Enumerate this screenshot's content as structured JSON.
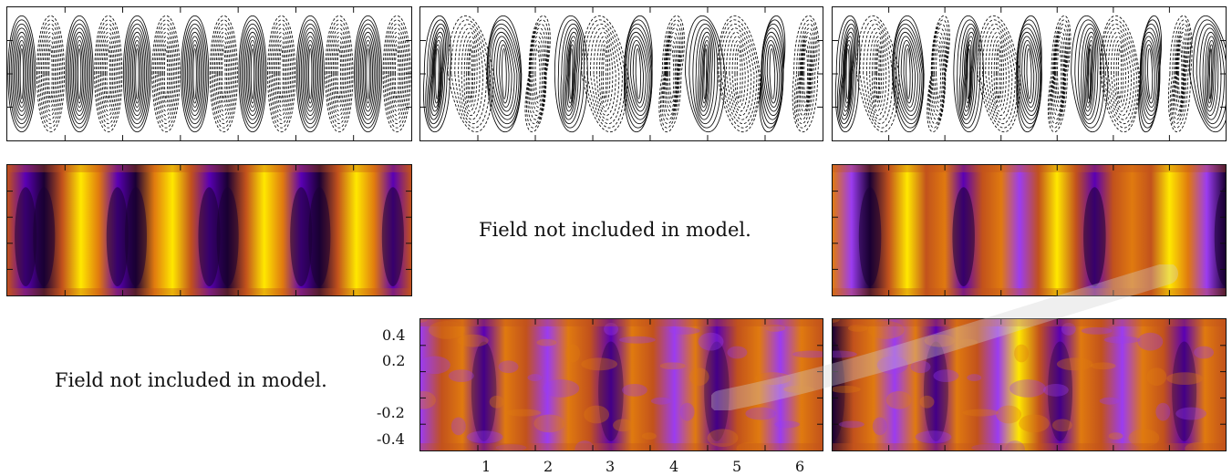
{
  "figure": {
    "notes": {
      "middle_row_center": "Field not included in model.",
      "bottom_row_left": "Field not included in model."
    },
    "y_tick_labels": [
      "0.4",
      "0.2",
      "-0.2",
      "-0.4"
    ],
    "x_tick_labels": [
      "1",
      "2",
      "3",
      "4",
      "5",
      "6"
    ],
    "colormap": [
      "#1a0033",
      "#5a00b4",
      "#9b3cf0",
      "#c2521c",
      "#e07a0f",
      "#ffe800"
    ]
  }
}
